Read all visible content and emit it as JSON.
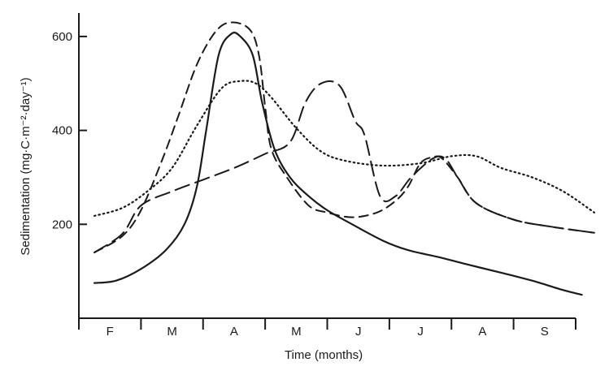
{
  "chart_data": {
    "type": "line",
    "xlabel": "Time (months)",
    "ylabel": "Sedimentation (mg·C·m⁻²·day⁻¹)",
    "categories": [
      "F",
      "M",
      "A",
      "M",
      "J",
      "J",
      "A",
      "S"
    ],
    "xlim": [
      0,
      8
    ],
    "ylim": [
      0,
      650
    ],
    "yticks": [
      200,
      400,
      600
    ],
    "grid": false,
    "legend": "none",
    "series": [
      {
        "style": "solid",
        "points": [
          [
            0.25,
            75
          ],
          [
            0.6,
            80
          ],
          [
            1,
            105
          ],
          [
            1.4,
            145
          ],
          [
            1.7,
            200
          ],
          [
            1.9,
            280
          ],
          [
            2.05,
            400
          ],
          [
            2.25,
            560
          ],
          [
            2.45,
            605
          ],
          [
            2.6,
            600
          ],
          [
            2.8,
            560
          ],
          [
            2.95,
            460
          ],
          [
            3.15,
            360
          ],
          [
            3.4,
            300
          ],
          [
            3.7,
            260
          ],
          [
            4,
            230
          ],
          [
            4.4,
            200
          ],
          [
            4.9,
            165
          ],
          [
            5.3,
            145
          ],
          [
            5.8,
            130
          ],
          [
            6.3,
            113
          ],
          [
            6.8,
            97
          ],
          [
            7.3,
            80
          ],
          [
            7.8,
            60
          ],
          [
            8.1,
            50
          ]
        ]
      },
      {
        "style": "long-dash",
        "points": [
          [
            0.25,
            140
          ],
          [
            0.7,
            180
          ],
          [
            1,
            240
          ],
          [
            1.5,
            270
          ],
          [
            2,
            295
          ],
          [
            2.5,
            320
          ],
          [
            3,
            350
          ],
          [
            3.4,
            375
          ],
          [
            3.65,
            460
          ],
          [
            3.9,
            500
          ],
          [
            4.2,
            495
          ],
          [
            4.45,
            420
          ],
          [
            4.6,
            390
          ],
          [
            4.85,
            260
          ],
          [
            5.1,
            260
          ],
          [
            5.35,
            300
          ],
          [
            5.7,
            340
          ],
          [
            5.9,
            340
          ],
          [
            6.1,
            300
          ],
          [
            6.4,
            245
          ],
          [
            7,
            210
          ],
          [
            7.6,
            195
          ],
          [
            8.3,
            182
          ]
        ]
      },
      {
        "style": "short-dash",
        "points": [
          [
            0.25,
            140
          ],
          [
            0.7,
            175
          ],
          [
            1,
            230
          ],
          [
            1.35,
            340
          ],
          [
            1.6,
            430
          ],
          [
            1.9,
            540
          ],
          [
            2.2,
            610
          ],
          [
            2.45,
            630
          ],
          [
            2.75,
            615
          ],
          [
            2.9,
            560
          ],
          [
            3,
            450
          ],
          [
            3.1,
            360
          ],
          [
            3.35,
            300
          ],
          [
            3.7,
            240
          ],
          [
            4,
            225
          ],
          [
            4.4,
            215
          ],
          [
            4.8,
            225
          ],
          [
            5.1,
            250
          ],
          [
            5.3,
            280
          ],
          [
            5.5,
            330
          ],
          [
            5.7,
            343
          ],
          [
            5.85,
            340
          ],
          [
            6.1,
            300
          ],
          [
            6.4,
            245
          ],
          [
            7,
            210
          ],
          [
            7.6,
            195
          ],
          [
            8.3,
            182
          ]
        ]
      },
      {
        "style": "dotted",
        "points": [
          [
            0.25,
            218
          ],
          [
            0.7,
            235
          ],
          [
            1.1,
            270
          ],
          [
            1.5,
            320
          ],
          [
            1.9,
            410
          ],
          [
            2.3,
            490
          ],
          [
            2.6,
            505
          ],
          [
            2.85,
            500
          ],
          [
            3.1,
            470
          ],
          [
            3.5,
            405
          ],
          [
            3.9,
            355
          ],
          [
            4.3,
            335
          ],
          [
            4.9,
            325
          ],
          [
            5.5,
            330
          ],
          [
            6,
            345
          ],
          [
            6.4,
            345
          ],
          [
            6.8,
            320
          ],
          [
            7.3,
            300
          ],
          [
            7.8,
            270
          ],
          [
            8.3,
            225
          ]
        ]
      }
    ]
  }
}
